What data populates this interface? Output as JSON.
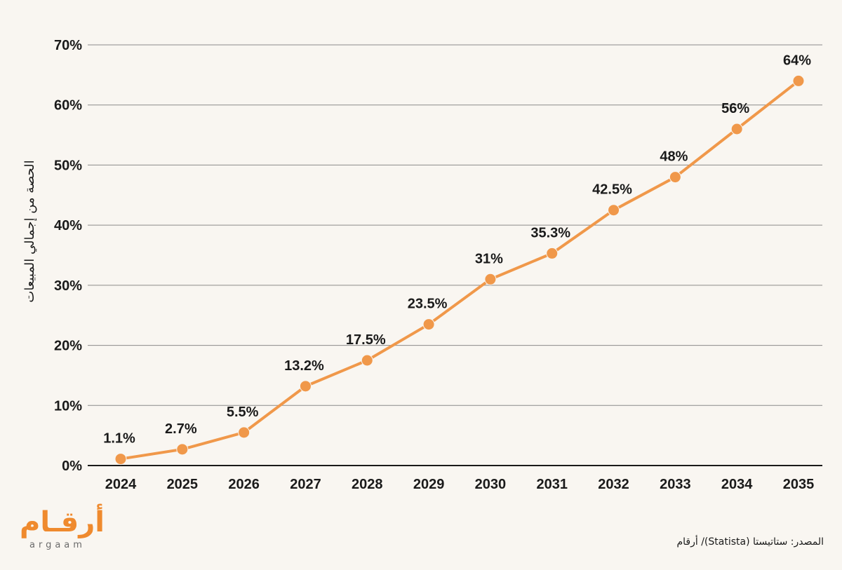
{
  "chart_data": {
    "type": "line",
    "ylabel": "الحصة من إجمالي المبيعات",
    "x": [
      "2024",
      "2025",
      "2026",
      "2027",
      "2028",
      "2029",
      "2030",
      "2031",
      "2032",
      "2033",
      "2034",
      "2035"
    ],
    "series": [
      {
        "values": [
          1.1,
          2.7,
          5.5,
          13.2,
          17.5,
          23.5,
          31,
          35.3,
          42.5,
          48,
          56,
          64
        ]
      }
    ],
    "data_labels": [
      "1.1%",
      "2.7%",
      "5.5%",
      "13.2%",
      "17.5%",
      "23.5%",
      "31%",
      "35.3%",
      "42.5%",
      "48%",
      "56%",
      "64%"
    ],
    "y_ticks": [
      "0%",
      "10%",
      "20%",
      "30%",
      "40%",
      "50%",
      "60%",
      "70%"
    ],
    "ylim": [
      0,
      70
    ],
    "grid": true,
    "line_color": "#f0984a"
  },
  "source": "المصدر: ستاتيستا (Statista)/ أرقام",
  "logo": {
    "arabic": "أرقـام",
    "latin": "argaam"
  }
}
